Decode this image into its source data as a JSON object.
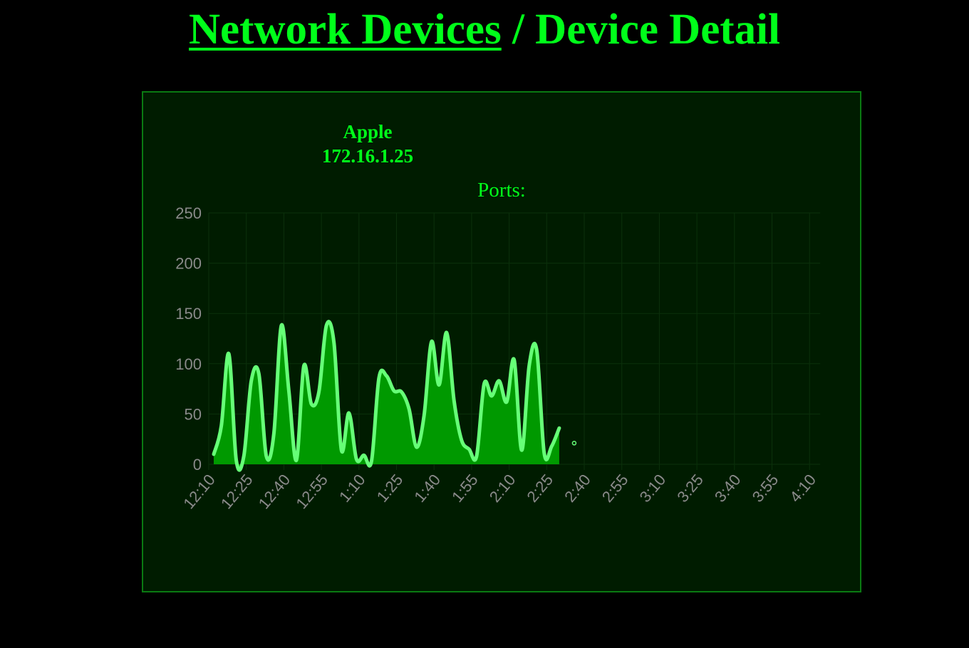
{
  "header": {
    "breadcrumb_link": "Network Devices",
    "separator": " / ",
    "current": "Device Detail"
  },
  "device": {
    "vendor": "Apple",
    "ip": "172.16.1.25"
  },
  "ports_label": "Ports:",
  "colors": {
    "accent": "#00ff1a",
    "panel_bg": "#001c00",
    "panel_border": "#0a7a12",
    "area_fill": "#009900",
    "line": "#66ff77",
    "axis_text": "#8a8a8a"
  },
  "chart_data": {
    "type": "area",
    "title": "",
    "xlabel": "",
    "ylabel": "",
    "ylim": [
      0,
      250
    ],
    "yticks": [
      0,
      50,
      100,
      150,
      200,
      250
    ],
    "xticks": [
      "12:10",
      "12:25",
      "12:40",
      "12:55",
      "1:10",
      "1:25",
      "1:40",
      "1:55",
      "2:10",
      "2:25",
      "2:40",
      "2:55",
      "3:10",
      "3:25",
      "3:40",
      "3:55",
      "4:10"
    ],
    "grid": true,
    "legend": "none",
    "series": [
      {
        "values": [
          [
            0.4,
            10
          ],
          [
            1,
            38
          ],
          [
            1.6,
            110
          ],
          [
            2.2,
            4
          ],
          [
            2.8,
            8
          ],
          [
            3.4,
            83
          ],
          [
            4,
            90
          ],
          [
            4.6,
            8
          ],
          [
            5.2,
            30
          ],
          [
            5.8,
            138
          ],
          [
            6.4,
            73
          ],
          [
            7,
            4
          ],
          [
            7.6,
            98
          ],
          [
            8.2,
            60
          ],
          [
            8.8,
            72
          ],
          [
            9.4,
            138
          ],
          [
            10,
            121
          ],
          [
            10.6,
            14
          ],
          [
            11.2,
            51
          ],
          [
            11.8,
            5
          ],
          [
            12.4,
            9
          ],
          [
            13,
            3
          ],
          [
            13.6,
            86
          ],
          [
            14.2,
            88
          ],
          [
            14.8,
            73
          ],
          [
            15.4,
            72
          ],
          [
            16,
            55
          ],
          [
            16.6,
            17
          ],
          [
            17.2,
            48
          ],
          [
            17.8,
            122
          ],
          [
            18.4,
            79
          ],
          [
            19,
            131
          ],
          [
            19.6,
            63
          ],
          [
            20.2,
            24
          ],
          [
            20.8,
            15
          ],
          [
            21.4,
            8
          ],
          [
            22,
            80
          ],
          [
            22.6,
            68
          ],
          [
            23.2,
            83
          ],
          [
            23.8,
            62
          ],
          [
            24.4,
            104
          ],
          [
            25,
            14
          ],
          [
            25.6,
            98
          ],
          [
            26.2,
            114
          ],
          [
            26.8,
            11
          ],
          [
            27.4,
            18
          ],
          [
            28,
            36
          ],
          [
            29.2,
            21
          ]
        ]
      }
    ]
  }
}
